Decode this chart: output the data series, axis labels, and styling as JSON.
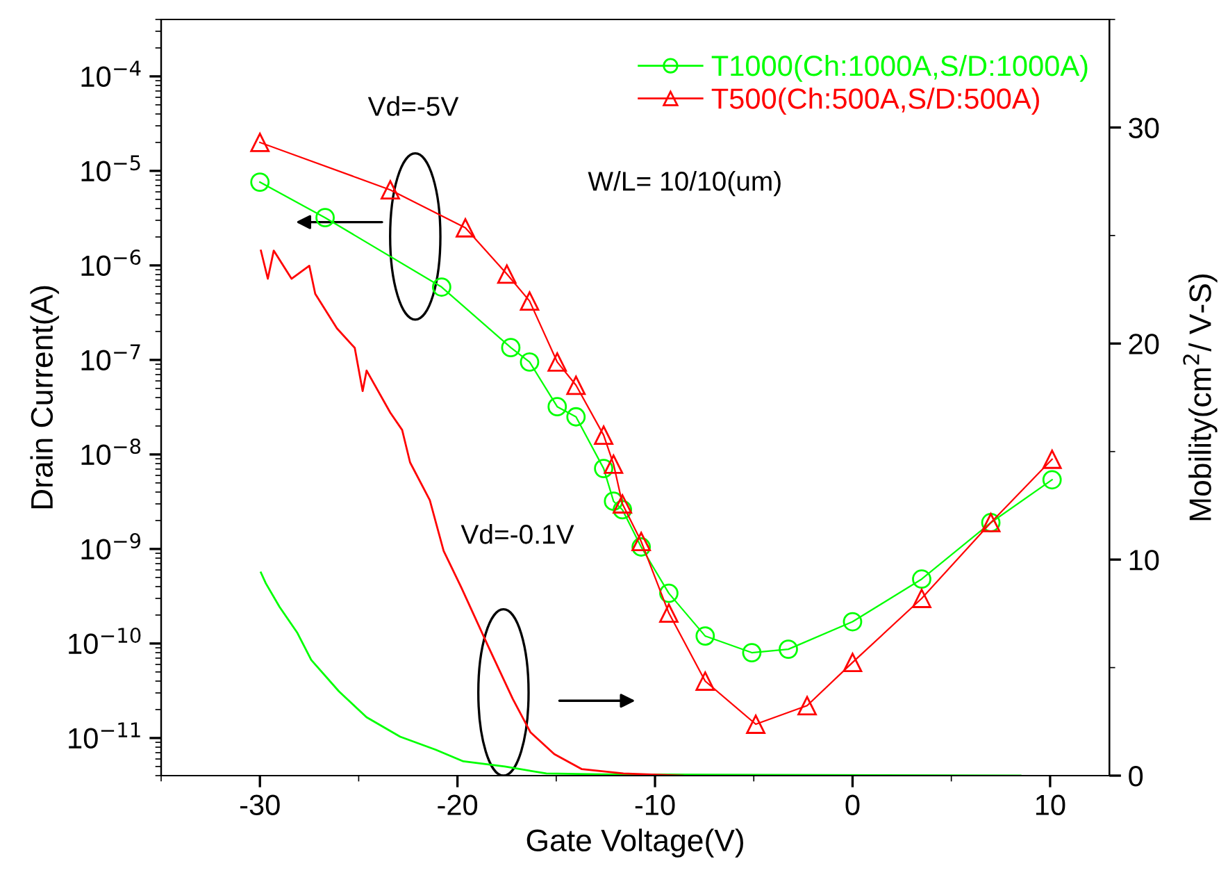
{
  "chart_data": {
    "type": "line",
    "xlabel": "Gate Voltage(V)",
    "ylabel": "Drain Current(A)",
    "y2label": "Mobility(cm$^{2}$/ V-S)",
    "log": "y",
    "legend": "top right",
    "grid": false,
    "xlim": [
      -35,
      13
    ],
    "xticks": [
      -30,
      -20,
      -10,
      0,
      10
    ],
    "ylim": [
      4e-12,
      0.0004
    ],
    "yticks": [
      {
        "value": 1e-11,
        "label": "10$^{−11}$"
      },
      {
        "value": 1e-10,
        "label": "10$^{−10}$"
      },
      {
        "value": 1e-09,
        "label": "10$^{−9}$"
      },
      {
        "value": 1e-08,
        "label": "10$^{−8}$"
      },
      {
        "value": 1e-07,
        "label": "10$^{−7}$"
      },
      {
        "value": 1e-06,
        "label": "10$^{−6}$"
      },
      {
        "value": 1e-05,
        "label": "10$^{−5}$"
      },
      {
        "value": 0.0001,
        "label": "10$^{−4}$"
      }
    ],
    "y2lim": [
      0,
      35
    ],
    "y2ticks": [
      0,
      10,
      20,
      30
    ],
    "series": [
      {
        "name": "T1000(Ch:1000A,S/D:1000A)",
        "color": "#00ff00",
        "marker": "circle",
        "line_style": "solid",
        "x": [
          -30,
          -26.7,
          -20.8,
          -17.3,
          -16.35,
          -14.95,
          -14.0,
          -12.6,
          -12.1,
          -11.65,
          -10.7,
          -9.3,
          -7.46,
          -5.1,
          -3.25,
          0,
          3.5,
          7.0,
          10.1
        ],
        "values": [
          7.6e-06,
          3.2e-06,
          5.9e-07,
          1.35e-07,
          9.5e-08,
          3.2e-08,
          2.5e-08,
          7.1e-09,
          3.2e-09,
          2.6e-09,
          1.05e-09,
          3.4e-10,
          1.2e-10,
          8e-11,
          8.7e-11,
          1.7e-10,
          4.8e-10,
          1.9e-09,
          5.4e-09
        ]
      },
      {
        "name": "T500(Ch:500A,S/D:500A)",
        "color": "#ff0000",
        "marker": "triangle",
        "line_style": "solid",
        "x": [
          -30,
          -23.4,
          -19.6,
          -17.5,
          -16.35,
          -14.95,
          -14.0,
          -12.6,
          -12.1,
          -11.65,
          -10.7,
          -9.3,
          -7.46,
          -4.9,
          -2.3,
          0,
          3.5,
          7.0,
          10.1
        ],
        "values": [
          2e-05,
          6.3e-06,
          2.5e-06,
          8.1e-07,
          4.2e-07,
          9.5e-08,
          5.4e-08,
          1.6e-08,
          7.9e-09,
          3e-09,
          1.2e-09,
          2.1e-10,
          4e-11,
          1.4e-11,
          2.2e-11,
          6.3e-11,
          3e-10,
          1.9e-09,
          8.9e-09
        ]
      },
      {
        "color": "#00ff00",
        "axis": "y2",
        "marker": "none",
        "line_style": "solid",
        "x": [
          -29.95,
          -29.7,
          -29.0,
          -28.1,
          -27.4,
          -26.0,
          -24.6,
          -22.9,
          -21.1,
          -19.7,
          -17.6,
          -15.5,
          -12.7,
          8.5
        ],
        "values": [
          9.4,
          8.9,
          7.8,
          6.6,
          5.35,
          3.9,
          2.7,
          1.8,
          1.2,
          0.66,
          0.42,
          0.1,
          0.06,
          0
        ]
      },
      {
        "color": "#ff0000",
        "axis": "y2",
        "marker": "none",
        "line_style": "solid",
        "x": [
          -29.95,
          -29.6,
          -29.3,
          -28.4,
          -27.5,
          -27.2,
          -26.1,
          -25.2,
          -24.8,
          -24.6,
          -23.4,
          -22.8,
          -22.4,
          -21.4,
          -20.7,
          -19.8,
          -18.4,
          -17.2,
          -16.3,
          -15.1,
          -13.7,
          -11.6,
          -8.6
        ],
        "values": [
          24.3,
          23.0,
          24.3,
          23.0,
          23.6,
          22.3,
          20.7,
          19.8,
          17.8,
          18.75,
          16.8,
          16.0,
          14.5,
          12.75,
          10.4,
          8.7,
          5.9,
          3.55,
          2.0,
          1.0,
          0.3,
          0.1,
          0
        ]
      }
    ],
    "annotations": [
      "Vd=-5V",
      "W/L= 10/10(um)",
      "Vd=-0.1V"
    ]
  }
}
